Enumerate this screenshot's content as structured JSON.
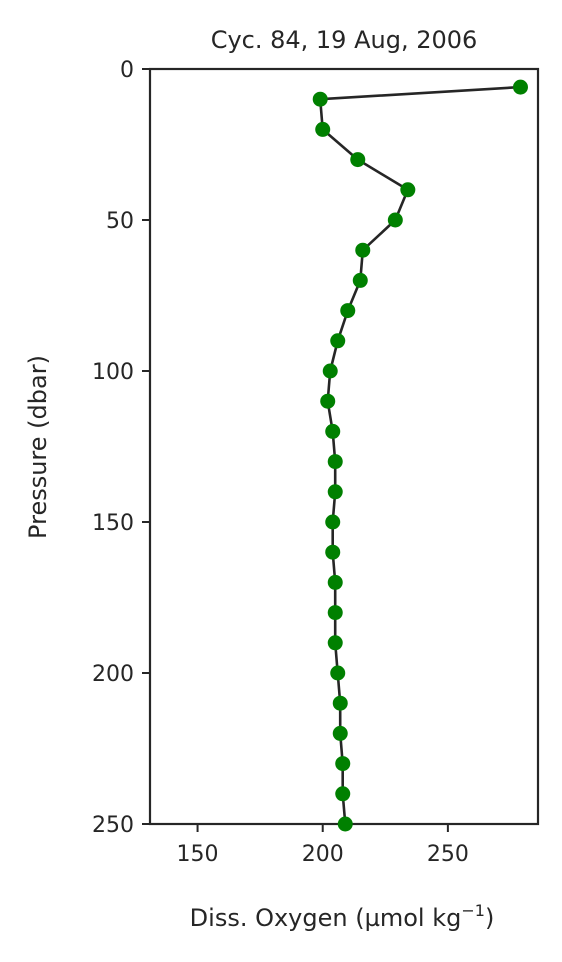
{
  "chart_data": {
    "type": "line",
    "title": "Cyc. 84, 19 Aug, 2006",
    "xlabel_main": "Diss. Oxygen (µmol kg",
    "xlabel_sup": "−1",
    "xlabel_close": ")",
    "ylabel": "Pressure (dbar)",
    "xlim": [
      131,
      286
    ],
    "ylim": [
      0,
      250
    ],
    "y_inverted": true,
    "grid": false,
    "xticks": [
      150,
      200,
      250
    ],
    "yticks": [
      0,
      50,
      100,
      150,
      200,
      250
    ],
    "line_color": "#262626",
    "marker_color": "#008000",
    "series": [
      {
        "x": [
          279,
          199,
          200,
          214,
          234,
          229,
          216,
          215,
          210,
          206,
          203,
          202,
          204,
          205,
          205,
          204,
          204,
          205,
          205,
          205,
          206,
          207,
          207,
          208,
          208,
          209
        ],
        "y": [
          6,
          10,
          20,
          30,
          40,
          50,
          60,
          70,
          80,
          90,
          100,
          110,
          120,
          130,
          140,
          150,
          160,
          170,
          180,
          190,
          200,
          210,
          220,
          230,
          240,
          250
        ]
      }
    ]
  }
}
